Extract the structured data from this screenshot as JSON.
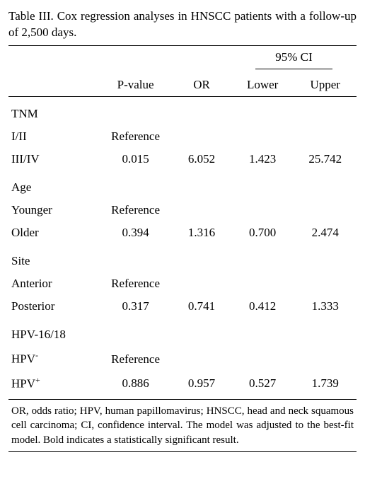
{
  "caption": "Table III. Cox regression analyses in HNSCC patients with a follow-up of 2,500 days.",
  "headers": {
    "pvalue": "P-value",
    "or": "OR",
    "ci": "95% CI",
    "lower": "Lower",
    "upper": "Upper"
  },
  "groups": [
    {
      "name": "TNM",
      "rows": [
        {
          "label": "I/II",
          "pvalue": "Reference",
          "or": "",
          "lower": "",
          "upper": "",
          "bold": false
        },
        {
          "label": "III/IV",
          "pvalue": "0.015",
          "or": "6.052",
          "lower": "1.423",
          "upper": "25.742",
          "bold": true
        }
      ]
    },
    {
      "name": "Age",
      "rows": [
        {
          "label": "Younger",
          "pvalue": "Reference",
          "or": "",
          "lower": "",
          "upper": "",
          "bold": false
        },
        {
          "label": "Older",
          "pvalue": "0.394",
          "or": "1.316",
          "lower": "0.700",
          "upper": "2.474",
          "bold": false
        }
      ]
    },
    {
      "name": "Site",
      "rows": [
        {
          "label": "Anterior",
          "pvalue": "Reference",
          "or": "",
          "lower": "",
          "upper": "",
          "bold": false
        },
        {
          "label": "Posterior",
          "pvalue": "0.317",
          "or": "0.741",
          "lower": "0.412",
          "upper": "1.333",
          "bold": false
        }
      ]
    },
    {
      "name": "HPV-16/18",
      "rows": [
        {
          "label": "HPV",
          "sup": "-",
          "pvalue": "Reference",
          "or": "",
          "lower": "",
          "upper": "",
          "bold": false
        },
        {
          "label": "HPV",
          "sup": "+",
          "pvalue": "0.886",
          "or": "0.957",
          "lower": "0.527",
          "upper": "1.739",
          "bold": false
        }
      ]
    }
  ],
  "footnote": "OR, odds ratio; HPV, human papillomavirus; HNSCC, head and neck squamous cell carcinoma; CI, confidence interval. The model was adjusted to the best-fit model. Bold indicates a statistically significant result.",
  "style": {
    "colwidths": [
      "26%",
      "21%",
      "17%",
      "18%",
      "18%"
    ],
    "bold_weight": "bold"
  }
}
